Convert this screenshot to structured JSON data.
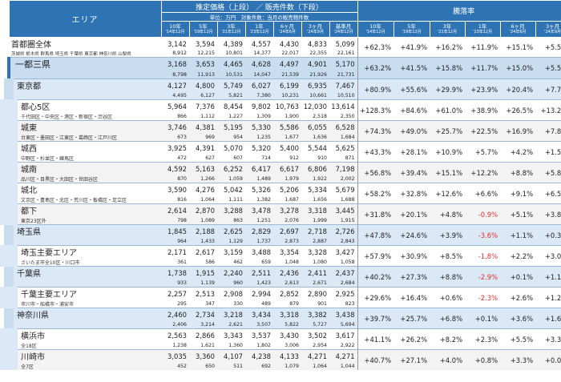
{
  "header": {
    "area_label": "エリア",
    "price_title": "推定価格（上段） ／ 販売件数（下段）",
    "unit_note": "単位：万円　対象件数：当月の販売物件数",
    "rate_title": "騰落率",
    "price_cols": [
      {
        "label": "10年",
        "date": "'14年12月"
      },
      {
        "label": "5年",
        "date": "'19年12月"
      },
      {
        "label": "3年",
        "date": "'21年12月"
      },
      {
        "label": "1年",
        "date": "'23年12月"
      },
      {
        "label": "6ヶ月",
        "date": "'24年6月"
      },
      {
        "label": "3ヶ月",
        "date": "'24年9月"
      },
      {
        "label": "基準月",
        "date": "'24年12月"
      }
    ],
    "rate_cols": [
      {
        "label": "10年",
        "date": "'14年12月"
      },
      {
        "label": "5年",
        "date": "'19年12月"
      },
      {
        "label": "3年",
        "date": "'21年12月"
      },
      {
        "label": "1年",
        "date": "'23年12月"
      },
      {
        "label": "6ヶ月",
        "date": "'24年6月"
      },
      {
        "label": "3ヶ月",
        "date": "'24年9月"
      }
    ]
  },
  "rows": [
    {
      "level": "total",
      "name": "首都圏全体",
      "sub": "茨城県 栃木県 群馬県 埼玉県 千葉県 東京都 神奈川県 山梨県",
      "prices": [
        "3,142",
        "3,594",
        "4,389",
        "4,557",
        "4,430",
        "4,833",
        "5,099"
      ],
      "counts": [
        "8,912",
        "12,215",
        "10,801",
        "14,377",
        "22,017",
        "22,355",
        "22,161"
      ],
      "rates": [
        "+62.3%",
        "+41.9%",
        "+16.2%",
        "+11.9%",
        "+15.1%",
        "+5.5%"
      ]
    },
    {
      "level": "sanken",
      "name": "一都三県",
      "sub": "",
      "prices": [
        "3,168",
        "3,653",
        "4,465",
        "4,628",
        "4,497",
        "4,901",
        "5,170"
      ],
      "counts": [
        "8,798",
        "11,913",
        "10,531",
        "14,047",
        "21,539",
        "21,926",
        "21,731"
      ],
      "rates": [
        "+63.2%",
        "+41.5%",
        "+15.8%",
        "+11.7%",
        "+15.0%",
        "+5.5%"
      ]
    },
    {
      "level": "pref",
      "name": "東京都",
      "sub": "",
      "prices": [
        "4,127",
        "4,800",
        "5,749",
        "6,027",
        "6,199",
        "6,935",
        "7,467"
      ],
      "counts": [
        "4,495",
        "6,127",
        "5,821",
        "7,380",
        "10,231",
        "10,661",
        "10,510"
      ],
      "rates": [
        "+80.9%",
        "+55.6%",
        "+29.9%",
        "+23.9%",
        "+20.4%",
        "+7.7%"
      ]
    },
    {
      "level": "sub",
      "name": "都心5区",
      "sub": "千代田区・中央区・港区・新宿区・渋谷区",
      "prices": [
        "5,964",
        "7,376",
        "8,454",
        "9,802",
        "10,763",
        "12,030",
        "13,614"
      ],
      "counts": [
        "866",
        "1,112",
        "1,227",
        "1,309",
        "1,900",
        "2,518",
        "2,350"
      ],
      "rates": [
        "+128.3%",
        "+84.6%",
        "+61.0%",
        "+38.9%",
        "+26.5%",
        "+13.2%"
      ]
    },
    {
      "level": "sub",
      "name": "城東",
      "sub": "台東区・墨田区・江東区・葛飾区・江戸川区",
      "prices": [
        "3,746",
        "4,381",
        "5,195",
        "5,330",
        "5,586",
        "6,055",
        "6,528"
      ],
      "counts": [
        "673",
        "969",
        "954",
        "1,235",
        "1,677",
        "1,636",
        "1,684"
      ],
      "rates": [
        "+74.3%",
        "+49.0%",
        "+25.7%",
        "+22.5%",
        "+16.9%",
        "+7.8%"
      ]
    },
    {
      "level": "sub",
      "name": "城西",
      "sub": "中野区・杉並区・練馬区",
      "prices": [
        "3,925",
        "4,391",
        "5,070",
        "5,320",
        "5,400",
        "5,544",
        "5,625"
      ],
      "counts": [
        "472",
        "627",
        "607",
        "714",
        "912",
        "910",
        "871"
      ],
      "rates": [
        "+43.3%",
        "+28.1%",
        "+10.9%",
        "+5.7%",
        "+4.2%",
        "+1.5%"
      ]
    },
    {
      "level": "sub",
      "name": "城南",
      "sub": "品川区・目黒区・大田区・世田谷区",
      "prices": [
        "4,592",
        "5,163",
        "6,252",
        "6,417",
        "6,617",
        "6,806",
        "7,198"
      ],
      "counts": [
        "870",
        "1,266",
        "1,059",
        "1,489",
        "1,979",
        "1,922",
        "2,002"
      ],
      "rates": [
        "+56.8%",
        "+39.4%",
        "+15.1%",
        "+12.2%",
        "+8.8%",
        "+5.8%"
      ]
    },
    {
      "level": "sub",
      "name": "城北",
      "sub": "文京区・豊島区・北区・荒川区・板橋区・足立区",
      "prices": [
        "3,590",
        "4,276",
        "5,042",
        "5,326",
        "5,206",
        "5,334",
        "5,679"
      ],
      "counts": [
        "816",
        "1,064",
        "1,111",
        "1,382",
        "1,687",
        "1,656",
        "1,688"
      ],
      "rates": [
        "+58.2%",
        "+32.8%",
        "+12.6%",
        "+6.6%",
        "+9.1%",
        "+6.5%"
      ]
    },
    {
      "level": "sub",
      "name": "都下",
      "sub": "東京23区外",
      "prices": [
        "2,614",
        "2,870",
        "3,288",
        "3,478",
        "3,278",
        "3,318",
        "3,445"
      ],
      "counts": [
        "798",
        "1,089",
        "863",
        "1,251",
        "2,076",
        "1,999",
        "1,915"
      ],
      "rates": [
        "+31.8%",
        "+20.1%",
        "+4.8%",
        "-0.9%",
        "+5.1%",
        "+3.8%"
      ]
    },
    {
      "level": "pref",
      "name": "埼玉県",
      "sub": "",
      "prices": [
        "1,845",
        "2,188",
        "2,625",
        "2,829",
        "2,697",
        "2,718",
        "2,726"
      ],
      "counts": [
        "964",
        "1,433",
        "1,129",
        "1,737",
        "2,873",
        "2,887",
        "2,843"
      ],
      "rates": [
        "+47.8%",
        "+24.6%",
        "+3.9%",
        "-3.6%",
        "+1.1%",
        "+0.3%"
      ]
    },
    {
      "level": "sub",
      "name": "埼玉主要エリア",
      "sub": "さいたま市全10区・川口市",
      "prices": [
        "2,171",
        "2,617",
        "3,159",
        "3,488",
        "3,354",
        "3,328",
        "3,427"
      ],
      "counts": [
        "361",
        "586",
        "462",
        "659",
        "1,048",
        "1,080",
        "1,058"
      ],
      "rates": [
        "+57.9%",
        "+30.9%",
        "+8.5%",
        "-1.8%",
        "+2.2%",
        "+3.0%"
      ]
    },
    {
      "level": "pref",
      "name": "千葉県",
      "sub": "",
      "prices": [
        "1,738",
        "1,915",
        "2,240",
        "2,511",
        "2,436",
        "2,411",
        "2,437"
      ],
      "counts": [
        "933",
        "1,139",
        "960",
        "1,423",
        "2,613",
        "2,671",
        "2,684"
      ],
      "rates": [
        "+40.2%",
        "+27.3%",
        "+8.8%",
        "-2.9%",
        "+0.1%",
        "+1.1%"
      ]
    },
    {
      "level": "sub",
      "name": "千葉主要エリア",
      "sub": "市川市・船橋市・浦安市",
      "prices": [
        "2,257",
        "2,513",
        "2,908",
        "2,994",
        "2,852",
        "2,890",
        "2,925"
      ],
      "counts": [
        "295",
        "347",
        "330",
        "489",
        "879",
        "901",
        "823"
      ],
      "rates": [
        "+29.6%",
        "+16.4%",
        "+0.6%",
        "-2.3%",
        "+2.6%",
        "+1.2%"
      ]
    },
    {
      "level": "pref",
      "name": "神奈川県",
      "sub": "",
      "prices": [
        "2,460",
        "2,734",
        "3,218",
        "3,434",
        "3,318",
        "3,382",
        "3,438"
      ],
      "counts": [
        "2,406",
        "3,214",
        "2,621",
        "3,507",
        "5,822",
        "5,727",
        "5,694"
      ],
      "rates": [
        "+39.7%",
        "+25.7%",
        "+6.8%",
        "+0.1%",
        "+3.6%",
        "+1.6%"
      ]
    },
    {
      "level": "sub",
      "name": "横浜市",
      "sub": "全18区",
      "prices": [
        "2,563",
        "2,866",
        "3,343",
        "3,537",
        "3,430",
        "3,502",
        "3,617"
      ],
      "counts": [
        "1,238",
        "1,621",
        "1,360",
        "1,802",
        "3,006",
        "2,954",
        "2,922"
      ],
      "rates": [
        "+41.1%",
        "+26.2%",
        "+8.2%",
        "+2.3%",
        "+5.5%",
        "+3.3%"
      ]
    },
    {
      "level": "sub",
      "name": "川崎市",
      "sub": "全7区",
      "prices": [
        "3,035",
        "3,360",
        "4,107",
        "4,238",
        "4,133",
        "4,271",
        "4,271"
      ],
      "counts": [
        "452",
        "650",
        "511",
        "692",
        "1,079",
        "1,064",
        "1,044"
      ],
      "rates": [
        "+40.7%",
        "+27.1%",
        "+4.0%",
        "+0.8%",
        "+3.3%",
        "+0.0%"
      ]
    }
  ],
  "colors": {
    "header_bg": "#2e74b5",
    "sanken_bg": "#c9ddf0",
    "pref_bg": "#dbe8f5",
    "negative": "#e03030"
  }
}
